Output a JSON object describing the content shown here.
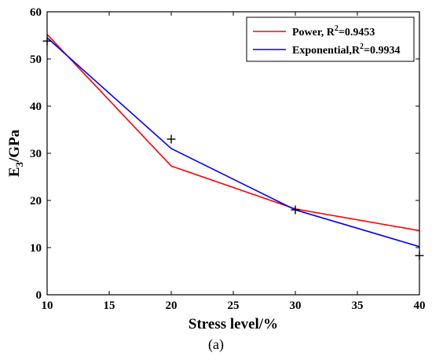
{
  "chart_data": {
    "type": "line",
    "xlabel": "Stress level/%",
    "ylabel": {
      "main": "E",
      "sub": "3",
      "rest": "/GPa"
    },
    "xlim": [
      10,
      40
    ],
    "ylim": [
      0,
      60
    ],
    "xticks": [
      10,
      15,
      20,
      25,
      30,
      35,
      40
    ],
    "yticks": [
      0,
      10,
      20,
      30,
      40,
      50,
      60
    ],
    "grid": false,
    "legend_position": "top-right",
    "series": [
      {
        "name": "Power, R",
        "name_sup": "2",
        "name_suffix": "=0.9453",
        "color": "#ff0000",
        "x": [
          10,
          20,
          30,
          40
        ],
        "y": [
          55.2,
          27.3,
          18.2,
          13.6
        ]
      },
      {
        "name": "Exponential,R",
        "name_sup": "2",
        "name_suffix": "=0.9934",
        "color": "#0000ff",
        "x": [
          10,
          20,
          30,
          40
        ],
        "y": [
          54.5,
          31.0,
          18.0,
          10.2
        ]
      }
    ],
    "measured_points": {
      "marker": "+",
      "color": "#000000",
      "x": [
        10,
        20,
        30,
        40
      ],
      "y": [
        53.8,
        33.0,
        18.0,
        8.3
      ]
    }
  },
  "caption": "(a)"
}
